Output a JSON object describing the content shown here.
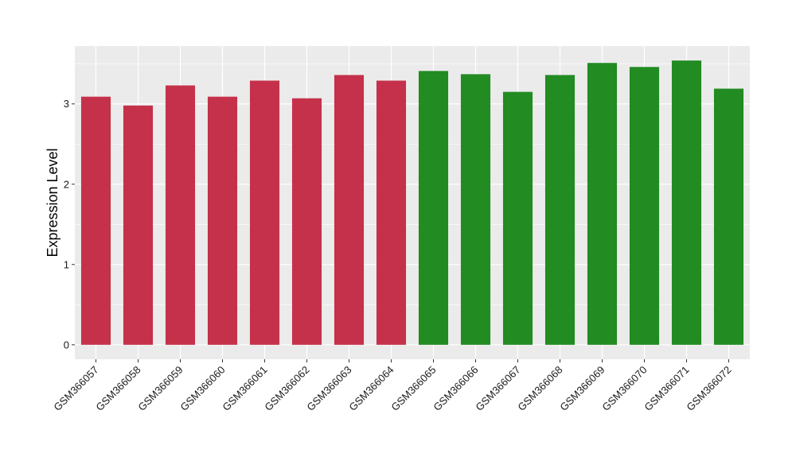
{
  "chart_data": {
    "type": "bar",
    "title": "",
    "xlabel": "",
    "ylabel": "Expression Level",
    "ylim": [
      -0.18,
      3.72
    ],
    "yticks": [
      0,
      1,
      2,
      3
    ],
    "grid": true,
    "legend": "none",
    "categories": [
      "GSM366057",
      "GSM366058",
      "GSM366059",
      "GSM366060",
      "GSM366061",
      "GSM366062",
      "GSM366063",
      "GSM366064",
      "GSM366065",
      "GSM366066",
      "GSM366067",
      "GSM366068",
      "GSM366069",
      "GSM366070",
      "GSM366071",
      "GSM366072"
    ],
    "values": [
      3.09,
      2.98,
      3.23,
      3.09,
      3.29,
      3.07,
      3.36,
      3.29,
      3.41,
      3.37,
      3.15,
      3.36,
      3.51,
      3.46,
      3.54,
      3.19
    ],
    "bar_colors": [
      "#c5314a",
      "#c5314a",
      "#c5314a",
      "#c5314a",
      "#c5314a",
      "#c5314a",
      "#c5314a",
      "#c5314a",
      "#228b22",
      "#228b22",
      "#228b22",
      "#228b22",
      "#228b22",
      "#228b22",
      "#228b22",
      "#228b22"
    ],
    "panel_background": "#ebebeb",
    "grid_color": "#ffffff"
  }
}
